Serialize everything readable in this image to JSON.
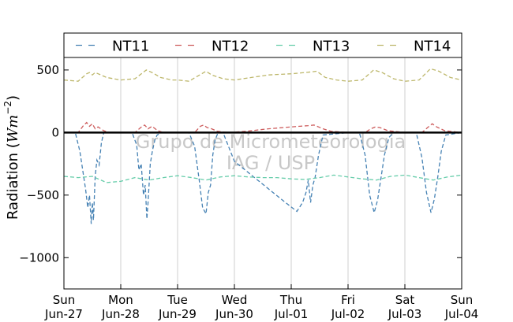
{
  "chart_data": {
    "type": "line",
    "ylabel": "Radiation (Wm^-2)",
    "ylim": [
      -1250,
      600
    ],
    "yticks": [
      500,
      0,
      -500,
      -1000
    ],
    "ytick_labels": [
      "500",
      "0",
      "−500",
      "−1000"
    ],
    "x_unit": "days since Sun Jun-27 00:00",
    "xlim": [
      0,
      7
    ],
    "xticks": [
      {
        "day": "Sun",
        "date": "Jun-27"
      },
      {
        "day": "Mon",
        "date": "Jun-28"
      },
      {
        "day": "Tue",
        "date": "Jun-29"
      },
      {
        "day": "Wed",
        "date": "Jun-30"
      },
      {
        "day": "Thu",
        "date": "Jul-01"
      },
      {
        "day": "Fri",
        "date": "Jul-02"
      },
      {
        "day": "Sat",
        "date": "Jul-03"
      },
      {
        "day": "Sun",
        "date": "Jul-04"
      }
    ],
    "grid": "vertical",
    "legend": "top",
    "watermark": [
      "Grupo de Micrometeorologia",
      "IAG / USP"
    ],
    "series": [
      {
        "name": "NT11",
        "color": "#4682b4",
        "x": [
          0.0,
          0.2,
          0.28,
          0.34,
          0.38,
          0.42,
          0.45,
          0.48,
          0.5,
          0.52,
          0.55,
          0.58,
          0.62,
          0.66,
          0.7,
          0.72,
          1.0,
          1.2,
          1.28,
          1.32,
          1.36,
          1.4,
          1.43,
          1.46,
          1.48,
          1.52,
          1.56,
          1.6,
          1.64,
          1.72,
          2.0,
          2.2,
          2.3,
          2.38,
          2.44,
          2.5,
          2.54,
          2.58,
          2.62,
          2.66,
          2.7,
          2.74,
          2.8,
          3.0,
          3.3,
          3.6,
          3.9,
          4.1,
          4.2,
          4.26,
          4.3,
          4.34,
          4.38,
          4.42,
          4.48,
          4.56,
          5.0,
          5.2,
          5.3,
          5.38,
          5.46,
          5.52,
          5.58,
          5.64,
          5.72,
          5.8,
          6.0,
          6.2,
          6.3,
          6.38,
          6.46,
          6.52,
          6.58,
          6.64,
          6.72,
          7.0
        ],
        "y": [
          0,
          0,
          -150,
          -330,
          -450,
          -600,
          -500,
          -730,
          -560,
          -700,
          -350,
          -220,
          -260,
          -80,
          -5,
          0,
          0,
          0,
          -100,
          -300,
          -250,
          -500,
          -420,
          -690,
          -560,
          -250,
          -140,
          -60,
          -20,
          0,
          0,
          0,
          -110,
          -380,
          -600,
          -650,
          -480,
          -420,
          -180,
          -60,
          -15,
          0,
          0,
          -230,
          -340,
          -450,
          -560,
          -630,
          -560,
          -480,
          -380,
          -560,
          -420,
          -360,
          -180,
          -20,
          0,
          0,
          -180,
          -500,
          -640,
          -540,
          -360,
          -180,
          -40,
          0,
          0,
          0,
          -200,
          -480,
          -640,
          -530,
          -350,
          -150,
          -20,
          0
        ]
      },
      {
        "name": "NT12",
        "color": "#cd5c5c",
        "x": [
          0.0,
          0.25,
          0.35,
          0.4,
          0.45,
          0.5,
          0.55,
          0.6,
          0.7,
          0.8,
          1.0,
          1.25,
          1.35,
          1.42,
          1.48,
          1.55,
          1.65,
          1.75,
          2.0,
          2.3,
          2.4,
          2.46,
          2.52,
          2.6,
          2.7,
          2.9,
          3.2,
          3.6,
          4.0,
          4.3,
          4.4,
          4.48,
          4.56,
          4.7,
          5.0,
          5.3,
          5.4,
          5.48,
          5.56,
          5.7,
          6.0,
          6.3,
          6.4,
          6.48,
          6.56,
          6.7,
          7.0
        ],
        "y": [
          0,
          0,
          60,
          80,
          50,
          70,
          30,
          45,
          15,
          0,
          0,
          0,
          40,
          60,
          30,
          50,
          15,
          0,
          0,
          0,
          50,
          60,
          40,
          30,
          10,
          0,
          10,
          30,
          45,
          55,
          60,
          45,
          30,
          10,
          0,
          0,
          30,
          45,
          40,
          15,
          0,
          0,
          40,
          70,
          45,
          15,
          0
        ]
      },
      {
        "name": "NT13",
        "color": "#66cdaa",
        "x": [
          0.0,
          0.25,
          0.5,
          0.75,
          1.0,
          1.25,
          1.5,
          1.75,
          2.0,
          2.25,
          2.5,
          2.75,
          3.0,
          3.25,
          3.5,
          3.75,
          4.0,
          4.25,
          4.5,
          4.75,
          5.0,
          5.25,
          5.5,
          5.75,
          6.0,
          6.25,
          6.5,
          6.75,
          7.0
        ],
        "y": [
          -350,
          -360,
          -350,
          -400,
          -390,
          -360,
          -380,
          -360,
          -345,
          -360,
          -380,
          -355,
          -345,
          -355,
          -360,
          -360,
          -370,
          -375,
          -360,
          -340,
          -355,
          -370,
          -380,
          -350,
          -340,
          -360,
          -380,
          -355,
          -340
        ]
      },
      {
        "name": "NT14",
        "color": "#bdb76b",
        "x": [
          0.0,
          0.25,
          0.4,
          0.45,
          0.5,
          0.55,
          0.65,
          0.75,
          1.0,
          1.25,
          1.45,
          1.55,
          1.7,
          1.9,
          2.0,
          2.2,
          2.35,
          2.5,
          2.6,
          2.8,
          3.0,
          3.3,
          3.6,
          4.0,
          4.25,
          4.45,
          4.6,
          4.8,
          5.0,
          5.25,
          5.45,
          5.6,
          5.8,
          6.0,
          6.25,
          6.45,
          6.6,
          6.8,
          7.0
        ],
        "y": [
          420,
          410,
          470,
          480,
          460,
          480,
          460,
          440,
          420,
          430,
          500,
          480,
          440,
          420,
          420,
          410,
          450,
          490,
          460,
          430,
          420,
          440,
          460,
          470,
          480,
          490,
          440,
          420,
          410,
          420,
          500,
          480,
          430,
          410,
          420,
          510,
          490,
          440,
          420
        ]
      }
    ]
  }
}
